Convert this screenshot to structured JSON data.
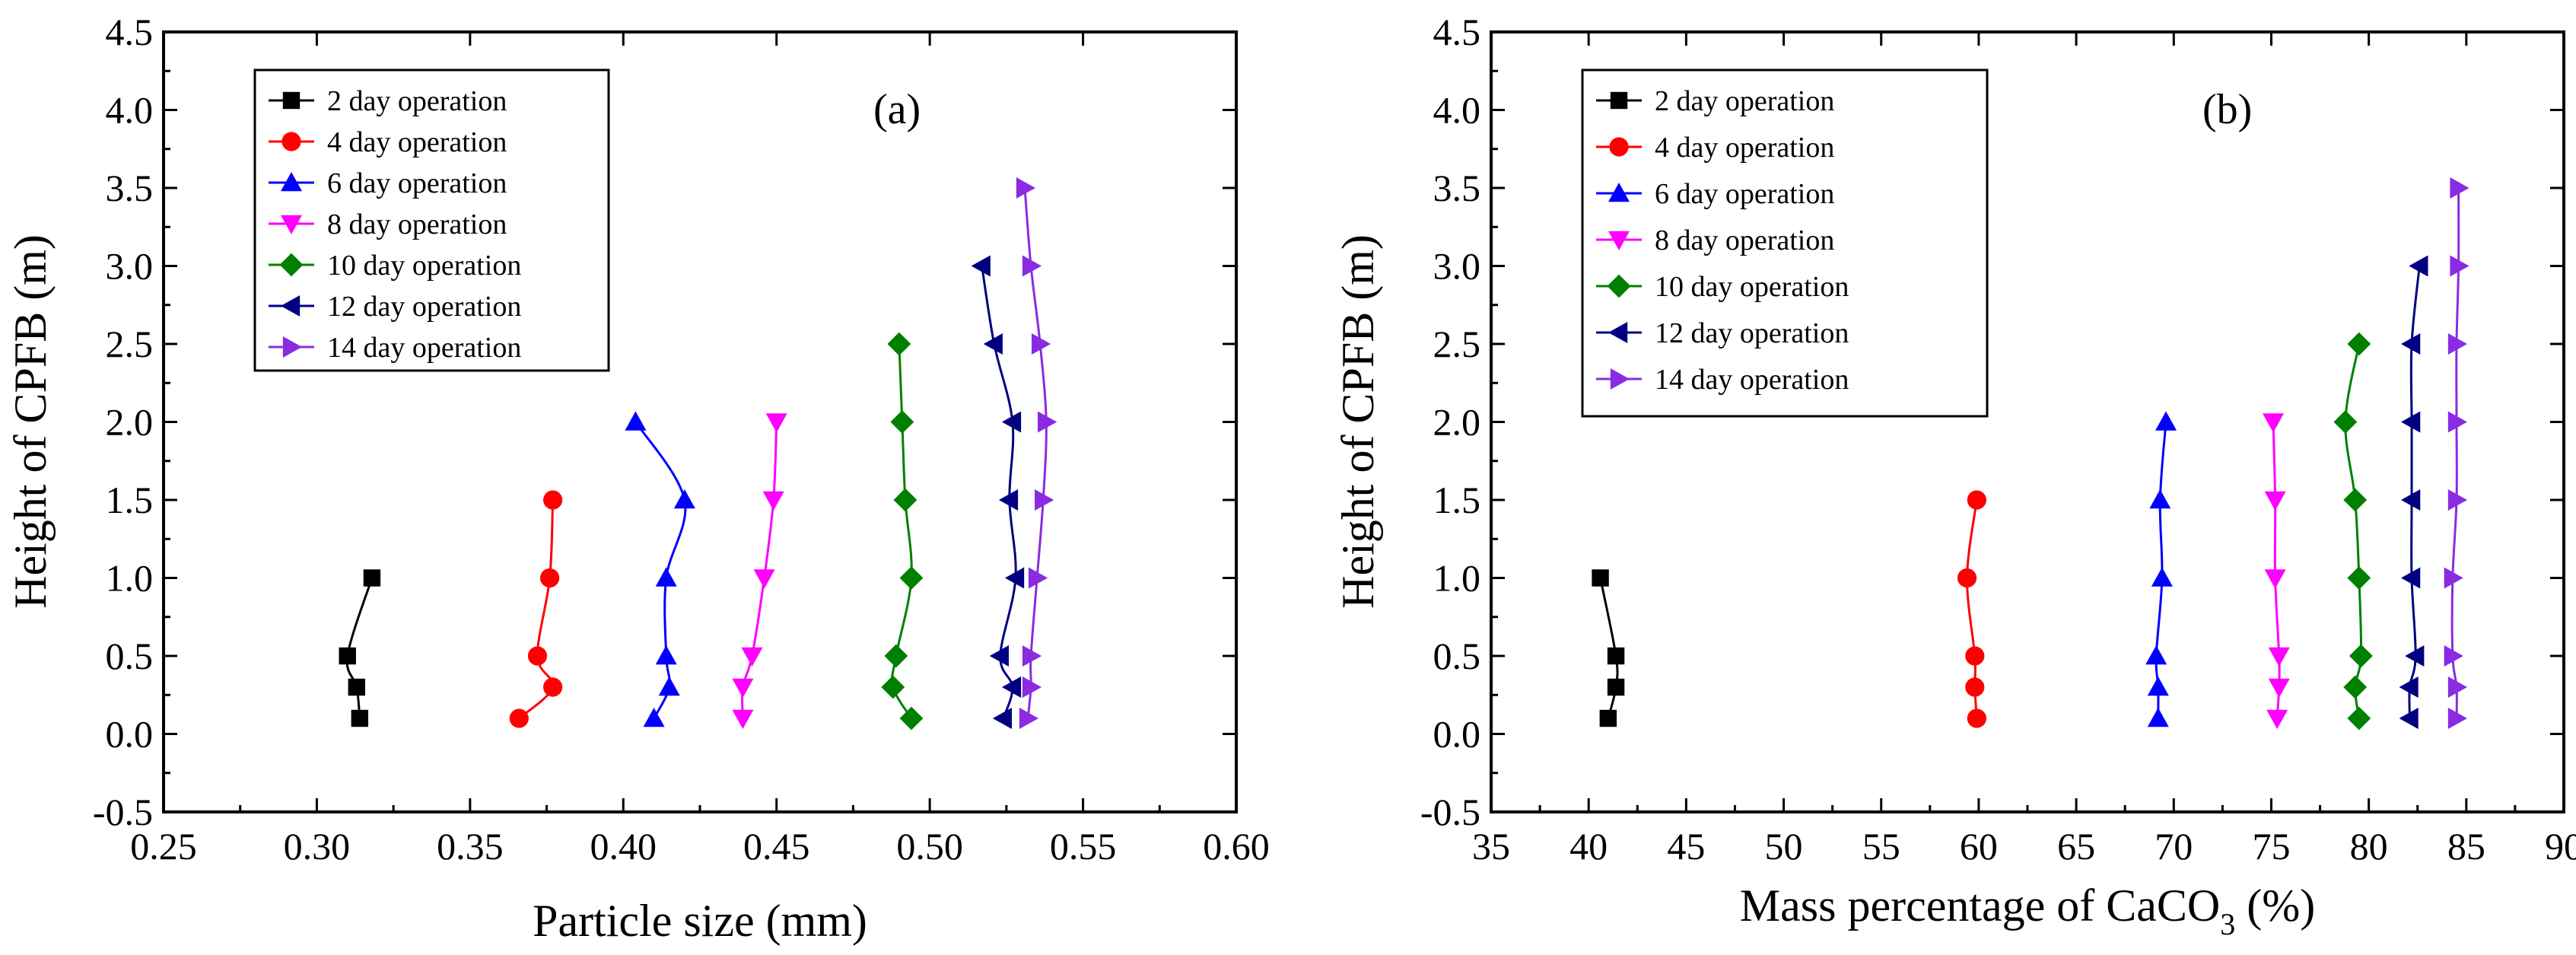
{
  "chart_data": [
    {
      "type": "line",
      "panel_label": "(a)",
      "xlabel": "Particle size (mm)",
      "ylabel": "Height of CPFB (m)",
      "xlim": [
        0.25,
        0.6
      ],
      "ylim": [
        -0.5,
        4.5
      ],
      "xticks": [
        "0.25",
        "0.30",
        "0.35",
        "0.40",
        "0.45",
        "0.50",
        "0.55",
        "0.60"
      ],
      "yticks": [
        "-0.5",
        "0.0",
        "0.5",
        "1.0",
        "1.5",
        "2.0",
        "2.5",
        "3.0",
        "3.5",
        "4.0",
        "4.5"
      ],
      "legend_position": "top-left",
      "grid": false,
      "series": [
        {
          "name": "2 day operation",
          "color": "#000000",
          "marker": "square",
          "points": [
            [
              0.314,
              0.1
            ],
            [
              0.313,
              0.3
            ],
            [
              0.31,
              0.5
            ],
            [
              0.318,
              1.0
            ]
          ]
        },
        {
          "name": "4 day operation",
          "color": "#ff0000",
          "marker": "circle",
          "points": [
            [
              0.366,
              0.1
            ],
            [
              0.377,
              0.3
            ],
            [
              0.372,
              0.5
            ],
            [
              0.376,
              1.0
            ],
            [
              0.377,
              1.5
            ]
          ]
        },
        {
          "name": "6 day operation",
          "color": "#0000ff",
          "marker": "triangle-up",
          "points": [
            [
              0.41,
              0.1
            ],
            [
              0.415,
              0.3
            ],
            [
              0.414,
              0.5
            ],
            [
              0.414,
              1.0
            ],
            [
              0.42,
              1.5
            ],
            [
              0.404,
              2.0
            ]
          ]
        },
        {
          "name": "8 day operation",
          "color": "#ff00ff",
          "marker": "triangle-down",
          "points": [
            [
              0.439,
              0.1
            ],
            [
              0.439,
              0.3
            ],
            [
              0.442,
              0.5
            ],
            [
              0.446,
              1.0
            ],
            [
              0.449,
              1.5
            ],
            [
              0.45,
              2.0
            ]
          ]
        },
        {
          "name": "10 day operation",
          "color": "#008000",
          "marker": "diamond",
          "points": [
            [
              0.494,
              0.1
            ],
            [
              0.488,
              0.3
            ],
            [
              0.489,
              0.5
            ],
            [
              0.494,
              1.0
            ],
            [
              0.492,
              1.5
            ],
            [
              0.491,
              2.0
            ],
            [
              0.49,
              2.5
            ]
          ]
        },
        {
          "name": "12 day operation",
          "color": "#000080",
          "marker": "triangle-left",
          "points": [
            [
              0.524,
              0.1
            ],
            [
              0.527,
              0.3
            ],
            [
              0.523,
              0.5
            ],
            [
              0.528,
              1.0
            ],
            [
              0.526,
              1.5
            ],
            [
              0.527,
              2.0
            ],
            [
              0.521,
              2.5
            ],
            [
              0.517,
              3.0
            ]
          ]
        },
        {
          "name": "14 day operation",
          "color": "#8a2be2",
          "marker": "triangle-right",
          "points": [
            [
              0.532,
              0.1
            ],
            [
              0.533,
              0.3
            ],
            [
              0.533,
              0.5
            ],
            [
              0.535,
              1.0
            ],
            [
              0.537,
              1.5
            ],
            [
              0.538,
              2.0
            ],
            [
              0.536,
              2.5
            ],
            [
              0.533,
              3.0
            ],
            [
              0.531,
              3.5
            ]
          ]
        }
      ]
    },
    {
      "type": "line",
      "panel_label": "(b)",
      "xlabel_main": "Mass percentage of CaCO",
      "xlabel_sub": "3",
      "xlabel_tail": " (%)",
      "ylabel": "Height of CPFB (m)",
      "xlim": [
        35,
        90
      ],
      "ylim": [
        -0.5,
        4.5
      ],
      "xticks": [
        "35",
        "40",
        "45",
        "50",
        "55",
        "60",
        "65",
        "70",
        "75",
        "80",
        "85",
        "90"
      ],
      "yticks": [
        "-0.5",
        "0.0",
        "0.5",
        "1.0",
        "1.5",
        "2.0",
        "2.5",
        "3.0",
        "3.5",
        "4.0",
        "4.5"
      ],
      "legend_position": "top-left",
      "grid": false,
      "series": [
        {
          "name": "2 day operation",
          "color": "#000000",
          "marker": "square",
          "points": [
            [
              41.0,
              0.1
            ],
            [
              41.4,
              0.3
            ],
            [
              41.4,
              0.5
            ],
            [
              40.6,
              1.0
            ]
          ]
        },
        {
          "name": "4 day operation",
          "color": "#ff0000",
          "marker": "circle",
          "points": [
            [
              59.9,
              0.1
            ],
            [
              59.8,
              0.3
            ],
            [
              59.8,
              0.5
            ],
            [
              59.4,
              1.0
            ],
            [
              59.9,
              1.5
            ]
          ]
        },
        {
          "name": "6 day operation",
          "color": "#0000ff",
          "marker": "triangle-up",
          "points": [
            [
              69.2,
              0.1
            ],
            [
              69.2,
              0.3
            ],
            [
              69.1,
              0.5
            ],
            [
              69.4,
              1.0
            ],
            [
              69.3,
              1.5
            ],
            [
              69.6,
              2.0
            ]
          ]
        },
        {
          "name": "8 day operation",
          "color": "#ff00ff",
          "marker": "triangle-down",
          "points": [
            [
              75.3,
              0.1
            ],
            [
              75.4,
              0.3
            ],
            [
              75.4,
              0.5
            ],
            [
              75.2,
              1.0
            ],
            [
              75.2,
              1.5
            ],
            [
              75.1,
              2.0
            ]
          ]
        },
        {
          "name": "10 day operation",
          "color": "#008000",
          "marker": "diamond",
          "points": [
            [
              79.5,
              0.1
            ],
            [
              79.3,
              0.3
            ],
            [
              79.6,
              0.5
            ],
            [
              79.5,
              1.0
            ],
            [
              79.3,
              1.5
            ],
            [
              78.8,
              2.0
            ],
            [
              79.5,
              2.5
            ]
          ]
        },
        {
          "name": "12 day operation",
          "color": "#000080",
          "marker": "triangle-left",
          "points": [
            [
              82.1,
              0.1
            ],
            [
              82.1,
              0.3
            ],
            [
              82.4,
              0.5
            ],
            [
              82.2,
              1.0
            ],
            [
              82.2,
              1.5
            ],
            [
              82.2,
              2.0
            ],
            [
              82.2,
              2.5
            ],
            [
              82.6,
              3.0
            ]
          ]
        },
        {
          "name": "14 day operation",
          "color": "#8a2be2",
          "marker": "triangle-right",
          "points": [
            [
              84.5,
              0.1
            ],
            [
              84.5,
              0.3
            ],
            [
              84.3,
              0.5
            ],
            [
              84.3,
              1.0
            ],
            [
              84.5,
              1.5
            ],
            [
              84.5,
              2.0
            ],
            [
              84.5,
              2.5
            ],
            [
              84.6,
              3.0
            ],
            [
              84.6,
              3.5
            ]
          ]
        }
      ]
    }
  ]
}
